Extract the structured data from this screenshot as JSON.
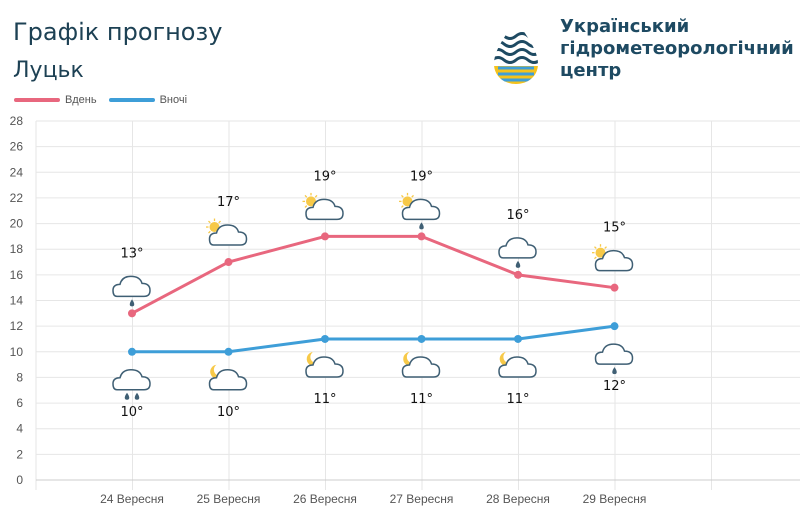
{
  "header": {
    "title": "Графік прогнозу",
    "city": "Луцьк"
  },
  "logo": {
    "lines": [
      "Український",
      "гідрометеорологічний",
      "центр"
    ]
  },
  "chart_data": {
    "type": "line",
    "categories": [
      "24 Вересня",
      "25 Вересня",
      "26 Вересня",
      "27 Вересня",
      "28 Вересня",
      "29 Вересня"
    ],
    "series": [
      {
        "name": "Вдень",
        "color": "#e8677e",
        "values": [
          13,
          17,
          19,
          19,
          16,
          15
        ],
        "labels": [
          "13°",
          "17°",
          "19°",
          "19°",
          "16°",
          "15°"
        ],
        "icons": [
          "rain-cloud-icon",
          "sun-cloud-icon",
          "sun-cloud-icon",
          "sun-cloud-rain-icon",
          "rain-cloud-icon",
          "sun-cloud-icon"
        ]
      },
      {
        "name": "Вночі",
        "color": "#3e9ed8",
        "values": [
          10,
          10,
          11,
          11,
          11,
          12
        ],
        "labels": [
          "10°",
          "10°",
          "11°",
          "11°",
          "11°",
          "12°"
        ],
        "icons": [
          "heavy-rain-cloud-icon",
          "moon-cloud-icon",
          "moon-cloud-icon",
          "moon-cloud-icon",
          "moon-cloud-icon",
          "rain-cloud-icon"
        ]
      }
    ],
    "ylim": [
      0,
      28
    ],
    "yticks": [
      0,
      2,
      4,
      6,
      8,
      10,
      12,
      14,
      16,
      18,
      20,
      22,
      24,
      26,
      28
    ],
    "grid": true,
    "legend": "top-left"
  }
}
